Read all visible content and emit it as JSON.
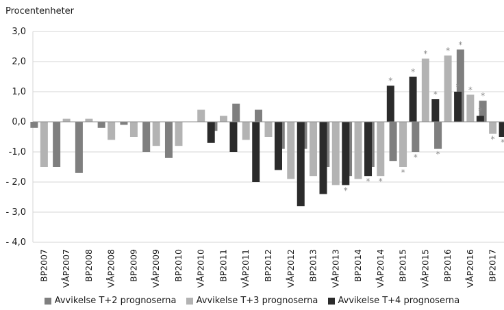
{
  "chart_data": {
    "type": "bar",
    "title": "",
    "ylabel": "Procentenheter",
    "xlabel": "",
    "ylim": [
      -4.0,
      3.0
    ],
    "yticks": [
      3.0,
      2.0,
      1.0,
      0.0,
      -1.0,
      -2.0,
      -3.0,
      -4.0
    ],
    "ytick_labels": [
      "3,0",
      "2,0",
      "1,0",
      "0,0",
      "-1,0",
      "- 2,0",
      "- 3,0",
      "- 4,0"
    ],
    "grid": true,
    "legend_position": "bottom",
    "categories": [
      "BP2007",
      "VÅP2007",
      "BP2008",
      "VÅP2008",
      "BP2009",
      "VÅP2009",
      "BP2010",
      "VÅP2010",
      "BP2011",
      "VÅP2011",
      "BP2012",
      "VÅP2012",
      "BP2013",
      "VÅP2013",
      "BP2014",
      "VÅP2014",
      "BP2015",
      "VÅP2015",
      "BP2016",
      "VÅP2016",
      "BP2017"
    ],
    "series": [
      {
        "name": "Avvikelse T+2 prognoserna",
        "color": "#7f7f7f",
        "values": [
          -0.2,
          -1.5,
          -1.7,
          -0.2,
          -0.1,
          -1.0,
          -1.2,
          null,
          -0.3,
          0.6,
          0.4,
          -0.9,
          -0.9,
          -1.5,
          -1.8,
          -1.5,
          -1.3,
          -1.0,
          -0.9,
          2.4,
          0.7
        ],
        "stars": [
          false,
          false,
          false,
          false,
          false,
          false,
          false,
          false,
          false,
          false,
          false,
          false,
          false,
          false,
          false,
          false,
          false,
          true,
          true,
          true,
          true
        ]
      },
      {
        "name": "Avvikelse T+3 prognoserna",
        "color": "#b3b3b3",
        "values": [
          -1.5,
          0.1,
          0.1,
          -0.6,
          -0.5,
          -0.8,
          -0.8,
          0.4,
          0.2,
          -0.6,
          -0.5,
          -1.9,
          -1.8,
          -2.1,
          -1.9,
          -1.8,
          -1.5,
          2.1,
          2.2,
          0.9,
          -0.4
        ],
        "stars": [
          false,
          false,
          false,
          false,
          false,
          false,
          false,
          false,
          false,
          false,
          false,
          false,
          false,
          false,
          false,
          true,
          true,
          true,
          true,
          true,
          true
        ]
      },
      {
        "name": "Avvikelse T+4 prognoserna",
        "color": "#2b2b2b",
        "values": [
          null,
          null,
          null,
          null,
          null,
          null,
          null,
          -0.7,
          -1.0,
          -2.0,
          -1.6,
          -2.8,
          -2.4,
          -2.1,
          -1.8,
          1.2,
          1.5,
          0.75,
          1.0,
          0.2,
          -0.5
        ],
        "stars": [
          false,
          false,
          false,
          false,
          false,
          false,
          false,
          false,
          false,
          false,
          false,
          false,
          false,
          true,
          true,
          true,
          true,
          true,
          true,
          true,
          true
        ]
      }
    ],
    "annotation_symbol": "*"
  }
}
